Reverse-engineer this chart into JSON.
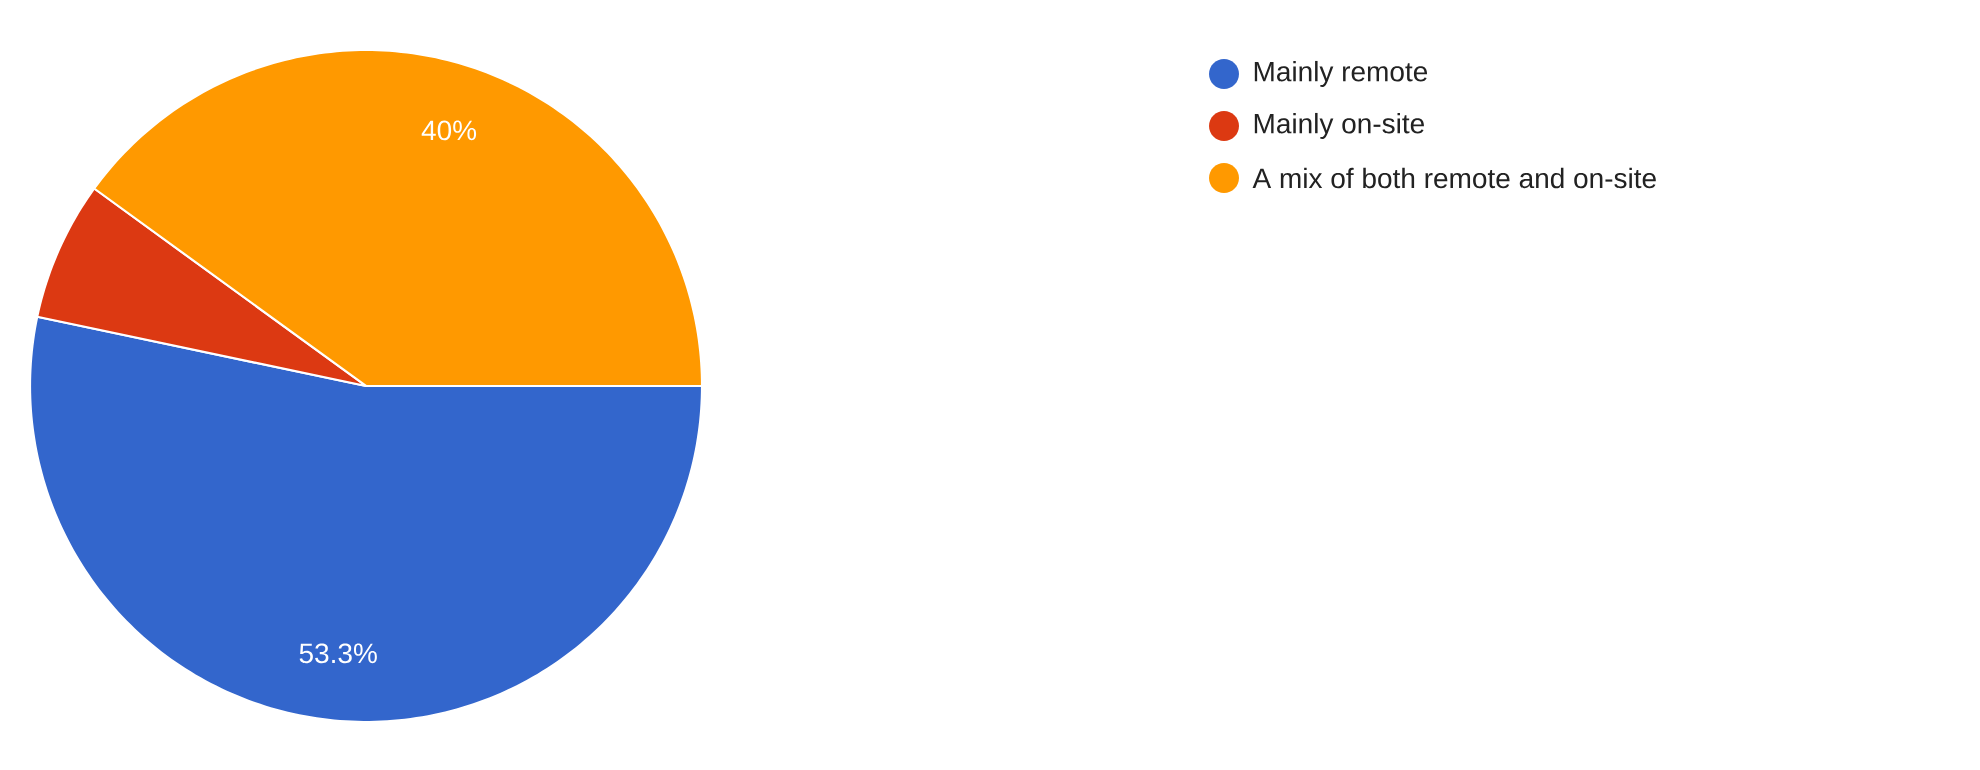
{
  "chart_data": {
    "type": "pie",
    "categories": [
      "Mainly remote",
      "Mainly on-site",
      "A mix of both remote and on-site"
    ],
    "values": [
      53.3,
      6.7,
      40
    ],
    "colors": [
      "#3366cc",
      "#dc3912",
      "#ff9900"
    ],
    "value_labels": [
      "53.3%",
      null,
      "40%"
    ],
    "legend": "right"
  }
}
